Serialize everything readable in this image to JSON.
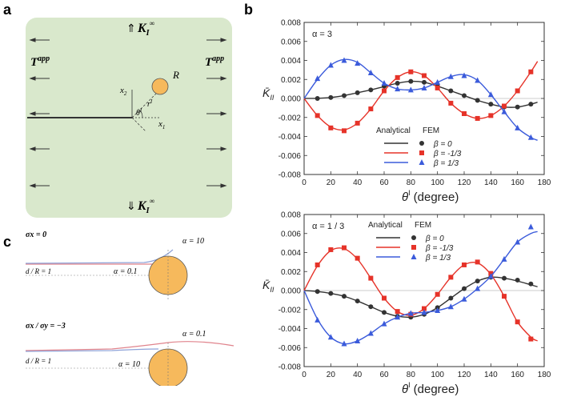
{
  "panels": {
    "a": "a",
    "b": "b",
    "c": "c"
  },
  "schematic": {
    "k_top": "K",
    "k_sub": "I",
    "k_sup": "∞",
    "k_bottom": "K",
    "t_left": "T",
    "t_sup": "app",
    "t_right": "T",
    "radius_label": "R",
    "x1": "x",
    "x1_sub": "1",
    "x2": "x",
    "x2_sub": "2",
    "theta": "θ",
    "theta_sup": "I",
    "r": "r",
    "r_sup": "I",
    "colors": {
      "background": "#d9e8cc",
      "inclusion": "#f6b95c"
    }
  },
  "panel_c": {
    "top_condition": "σx = 0",
    "top_alpha_high": "α = 10",
    "top_alpha_low": "α = 0.1",
    "top_ratio": "d / R = 1",
    "bottom_condition": "σx / σy = −3",
    "bottom_alpha_low": "α = 0.1",
    "bottom_alpha_high": "α = 10",
    "bottom_ratio": "d / R = 1"
  },
  "chart_data": [
    {
      "type": "line",
      "annotation": "α = 3",
      "ylabel": "K̄",
      "ylabel_sub": "II",
      "xlabel": "θ",
      "xlabel_sup": "I",
      "xlabel_unit": "(degree)",
      "xlim": [
        0,
        180
      ],
      "ylim": [
        -0.008,
        0.008
      ],
      "xticks": [
        "0",
        "20",
        "40",
        "60",
        "80",
        "100",
        "120",
        "140",
        "160",
        "180"
      ],
      "yticks": [
        "-0.008",
        "-0.006",
        "-0.004",
        "-0.002",
        "0.000",
        "0.002",
        "0.004",
        "0.006",
        "0.008"
      ],
      "legend": {
        "headers": [
          "Analytical",
          "FEM"
        ],
        "placement": "bottom-center"
      },
      "series": [
        {
          "name": "β = 0",
          "color": "#333333",
          "marker": "circle",
          "analytical": {
            "x": [
              0,
              10,
              20,
              30,
              40,
              50,
              60,
              70,
              80,
              90,
              100,
              110,
              120,
              130,
              140,
              150,
              160,
              170,
              175
            ],
            "y": [
              0,
              2e-05,
              0.0001,
              0.0003,
              0.0006,
              0.0009,
              0.00125,
              0.0016,
              0.0018,
              0.0017,
              0.0013,
              0.0008,
              0.0003,
              -0.0002,
              -0.0006,
              -0.0009,
              -0.0009,
              -0.0006,
              -0.0004
            ]
          },
          "fem": {
            "x": [
              10,
              20,
              30,
              40,
              50,
              60,
              70,
              80,
              90,
              100,
              110,
              120,
              130,
              140,
              150,
              160,
              170
            ],
            "y": [
              0,
              0.0001,
              0.0003,
              0.0006,
              0.0009,
              0.0013,
              0.0016,
              0.0018,
              0.0017,
              0.0013,
              0.0008,
              0.0003,
              -0.0002,
              -0.0006,
              -0.0009,
              -0.0009,
              -0.0006
            ]
          }
        },
        {
          "name": "β = -1/3",
          "color": "#e63329",
          "marker": "square",
          "analytical": {
            "x": [
              0,
              10,
              20,
              30,
              40,
              50,
              60,
              70,
              80,
              90,
              100,
              110,
              120,
              130,
              140,
              150,
              160,
              170,
              175
            ],
            "y": [
              0,
              -0.0018,
              -0.003,
              -0.0033,
              -0.0026,
              -0.0011,
              0.0008,
              0.0022,
              0.0028,
              0.0024,
              0.0011,
              -0.0005,
              -0.0016,
              -0.0021,
              -0.0018,
              -0.0008,
              0.0008,
              0.0028,
              0.0039
            ]
          },
          "fem": {
            "x": [
              10,
              20,
              30,
              40,
              50,
              60,
              70,
              80,
              90,
              100,
              110,
              120,
              130,
              140,
              150,
              160,
              170
            ],
            "y": [
              -0.0018,
              -0.0031,
              -0.0034,
              -0.0026,
              -0.0011,
              0.0008,
              0.0022,
              0.0028,
              0.0024,
              0.0011,
              -0.0005,
              -0.0016,
              -0.0021,
              -0.0018,
              -0.0008,
              0.0008,
              0.0028
            ]
          }
        },
        {
          "name": "β = 1/3",
          "color": "#3b5bdb",
          "marker": "triangle",
          "analytical": {
            "x": [
              0,
              10,
              20,
              30,
              40,
              50,
              60,
              70,
              80,
              90,
              100,
              110,
              120,
              130,
              140,
              150,
              160,
              170,
              175
            ],
            "y": [
              0,
              0.002,
              0.0035,
              0.0041,
              0.0038,
              0.0027,
              0.0016,
              0.001,
              0.0009,
              0.0011,
              0.0017,
              0.0023,
              0.0025,
              0.0019,
              0.0004,
              -0.0014,
              -0.0031,
              -0.0041,
              -0.0044
            ]
          },
          "fem": {
            "x": [
              10,
              20,
              30,
              40,
              50,
              60,
              70,
              80,
              90,
              100,
              110,
              120,
              130,
              140,
              150,
              160,
              170
            ],
            "y": [
              0.0021,
              0.0035,
              0.004,
              0.0037,
              0.0027,
              0.0016,
              0.001,
              0.0009,
              0.0011,
              0.0017,
              0.0023,
              0.0024,
              0.0019,
              0.0004,
              -0.0014,
              -0.0031,
              -0.0041
            ]
          }
        }
      ]
    },
    {
      "type": "line",
      "annotation": "α = 1 / 3",
      "ylabel": "K̄",
      "ylabel_sub": "II",
      "xlabel": "θ",
      "xlabel_sup": "I",
      "xlabel_unit": "(degree)",
      "xlim": [
        0,
        180
      ],
      "ylim": [
        -0.008,
        0.008
      ],
      "xticks": [
        "0",
        "20",
        "40",
        "60",
        "80",
        "100",
        "120",
        "140",
        "160",
        "180"
      ],
      "yticks": [
        "-0.008",
        "-0.006",
        "-0.004",
        "-0.002",
        "0.000",
        "0.002",
        "0.004",
        "0.006",
        "0.008"
      ],
      "legend": {
        "headers": [
          "Analytical",
          "FEM"
        ],
        "placement": "top-center"
      },
      "series": [
        {
          "name": "β = 0",
          "color": "#333333",
          "marker": "circle",
          "analytical": {
            "x": [
              0,
              10,
              20,
              30,
              40,
              50,
              60,
              70,
              80,
              90,
              100,
              110,
              120,
              130,
              140,
              150,
              160,
              170,
              175
            ],
            "y": [
              0,
              -0.0001,
              -0.0003,
              -0.0006,
              -0.0011,
              -0.0017,
              -0.0023,
              -0.0027,
              -0.0028,
              -0.0025,
              -0.0018,
              -0.0008,
              0.0002,
              0.001,
              0.0014,
              0.0013,
              0.001,
              0.0006,
              0.0004
            ]
          },
          "fem": {
            "x": [
              10,
              20,
              30,
              40,
              50,
              60,
              70,
              80,
              90,
              100,
              110,
              120,
              130,
              140,
              150,
              160,
              170
            ],
            "y": [
              -0.0001,
              -0.0003,
              -0.0006,
              -0.0011,
              -0.0017,
              -0.0023,
              -0.0027,
              -0.0028,
              -0.0025,
              -0.0018,
              -0.0008,
              0.0002,
              0.001,
              0.0014,
              0.0013,
              0.0011,
              0.0007
            ]
          }
        },
        {
          "name": "β = -1/3",
          "color": "#e63329",
          "marker": "square",
          "analytical": {
            "x": [
              0,
              10,
              20,
              30,
              40,
              50,
              60,
              70,
              80,
              90,
              100,
              110,
              120,
              130,
              140,
              150,
              160,
              170,
              175
            ],
            "y": [
              0,
              0.0026,
              0.0042,
              0.0044,
              0.0033,
              0.0013,
              -0.0008,
              -0.0022,
              -0.0026,
              -0.0019,
              -0.0004,
              0.0014,
              0.0027,
              0.0029,
              0.0017,
              -0.0006,
              -0.0033,
              -0.0049,
              -0.0053
            ]
          },
          "fem": {
            "x": [
              10,
              20,
              30,
              40,
              50,
              60,
              70,
              80,
              90,
              100,
              110,
              120,
              130,
              140,
              150,
              160,
              170
            ],
            "y": [
              0.0027,
              0.0043,
              0.0045,
              0.0034,
              0.0013,
              -0.0008,
              -0.0022,
              -0.0025,
              -0.0019,
              -0.0004,
              0.0014,
              0.0027,
              0.003,
              0.0018,
              -0.0006,
              -0.0033,
              -0.0051
            ]
          }
        },
        {
          "name": "β = 1/3",
          "color": "#3b5bdb",
          "marker": "triangle",
          "analytical": {
            "x": [
              0,
              10,
              20,
              30,
              40,
              50,
              60,
              70,
              80,
              90,
              100,
              110,
              120,
              130,
              140,
              150,
              160,
              170,
              175
            ],
            "y": [
              0,
              -0.003,
              -0.0049,
              -0.0056,
              -0.0053,
              -0.0045,
              -0.0035,
              -0.0028,
              -0.0024,
              -0.0023,
              -0.0021,
              -0.0017,
              -0.0009,
              0.0002,
              0.0015,
              0.0033,
              0.0051,
              0.006,
              0.0062
            ]
          },
          "fem": {
            "x": [
              10,
              20,
              30,
              40,
              50,
              60,
              70,
              80,
              90,
              100,
              110,
              120,
              130,
              140,
              150,
              160,
              170
            ],
            "y": [
              -0.0031,
              -0.0049,
              -0.0056,
              -0.0053,
              -0.0045,
              -0.0035,
              -0.0028,
              -0.0024,
              -0.0023,
              -0.0021,
              -0.0017,
              -0.0009,
              0.0002,
              0.0015,
              0.0033,
              0.0051,
              0.0067
            ]
          }
        }
      ]
    }
  ]
}
